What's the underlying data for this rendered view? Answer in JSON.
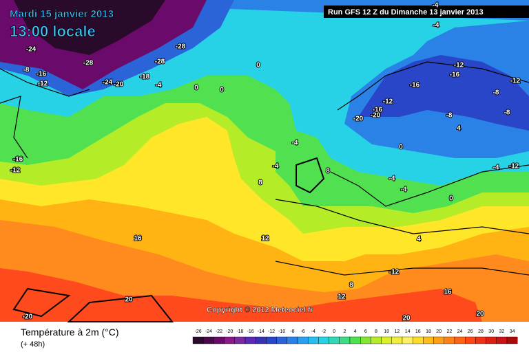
{
  "header": {
    "date": "Mardi 15 janvier 2013",
    "time": "13:00 locale",
    "run": "Run GFS 12 Z du Dimanche 13 janvier 2013"
  },
  "map": {
    "copyright": "Copyright © 2012 Meteociel.fr",
    "labels": [
      -24,
      -28,
      -28,
      -8,
      -16,
      -12,
      -24,
      -20,
      -18,
      -4,
      0,
      0,
      -28,
      -16,
      -12,
      -4,
      -8,
      -16,
      -12,
      -20,
      -20,
      0,
      -4,
      -8,
      -12,
      -16,
      -12,
      -4,
      -4,
      8,
      12,
      16,
      20,
      -20,
      12,
      8,
      20,
      20,
      16,
      -12,
      4,
      8,
      0,
      -4,
      -4,
      0,
      -16,
      -12,
      -8,
      -4,
      4
    ]
  },
  "legend": {
    "title": "Température à 2m (°C)",
    "lead": "(+ 48h)",
    "scale": [
      -26,
      -24,
      -22,
      -20,
      -18,
      -16,
      -14,
      -12,
      -10,
      -8,
      -6,
      -4,
      -2,
      0,
      2,
      4,
      6,
      8,
      10,
      12,
      14,
      16,
      18,
      20,
      22,
      24,
      26,
      28,
      30,
      32,
      34
    ],
    "colors": [
      "#2a0a2a",
      "#4a0a4a",
      "#6a0a6a",
      "#8a1a8a",
      "#7a2aa0",
      "#5a2ab4",
      "#3a32b4",
      "#2a46c8",
      "#2a64d8",
      "#2a82e6",
      "#2aa0f0",
      "#28bef0",
      "#28d2e6",
      "#32d8b4",
      "#3cdc82",
      "#50e050",
      "#82e632",
      "#b4ec28",
      "#dcf028",
      "#f0f03c",
      "#fff064",
      "#ffdc28",
      "#ffbe14",
      "#ffa014",
      "#ff8214",
      "#ff6414",
      "#ff4614",
      "#f03214",
      "#dc1e14",
      "#c81414",
      "#aa0a0a"
    ]
  }
}
